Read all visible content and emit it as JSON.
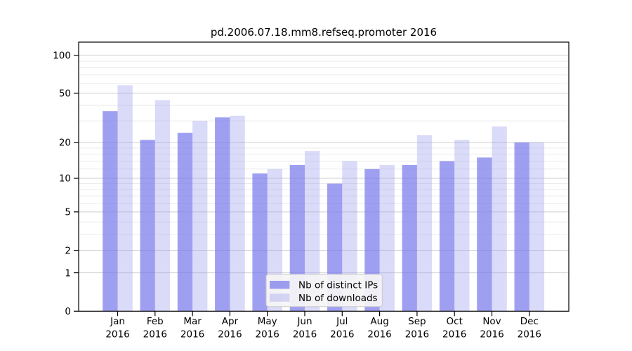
{
  "chart_data": {
    "type": "bar",
    "title": "pd.2006.07.18.mm8.refseq.promoter 2016",
    "year_label": "2016",
    "categories": [
      "Jan",
      "Feb",
      "Mar",
      "Apr",
      "May",
      "Jun",
      "Jul",
      "Aug",
      "Sep",
      "Oct",
      "Nov",
      "Dec"
    ],
    "series": [
      {
        "name": "Nb of distinct IPs",
        "color": "#7a7aeb",
        "alpha": 0.72,
        "css": "rgba(122,122,235,0.72)",
        "values": [
          36,
          21,
          24,
          32,
          11,
          13,
          9,
          12,
          13,
          14,
          15,
          20
        ]
      },
      {
        "name": "Nb of downloads",
        "color": "#9e9eee",
        "alpha": 0.38,
        "css": "rgba(158,158,238,0.38)",
        "values": [
          58,
          44,
          30,
          33,
          12,
          17,
          14,
          13,
          23,
          21,
          27,
          20
        ]
      }
    ],
    "xlabel": "",
    "ylabel": "",
    "yscale": "log(1+y)",
    "ylim": [
      0,
      120
    ],
    "yticks": [
      100,
      50,
      20,
      10,
      5,
      2,
      1,
      0
    ],
    "minor_gridlines": [
      90,
      80,
      70,
      60,
      40,
      30,
      18,
      16,
      14,
      12,
      9,
      8,
      7,
      6,
      4,
      3
    ],
    "grid": true,
    "legend_position": "bottom-center",
    "axis_color": "#000000",
    "major_grid_color": "#cfcfcf",
    "minor_grid_color": "#ebebeb",
    "legend_face_color": "rgba(245,245,245,0.92)",
    "legend_edge_color": "#c9c9c9"
  }
}
